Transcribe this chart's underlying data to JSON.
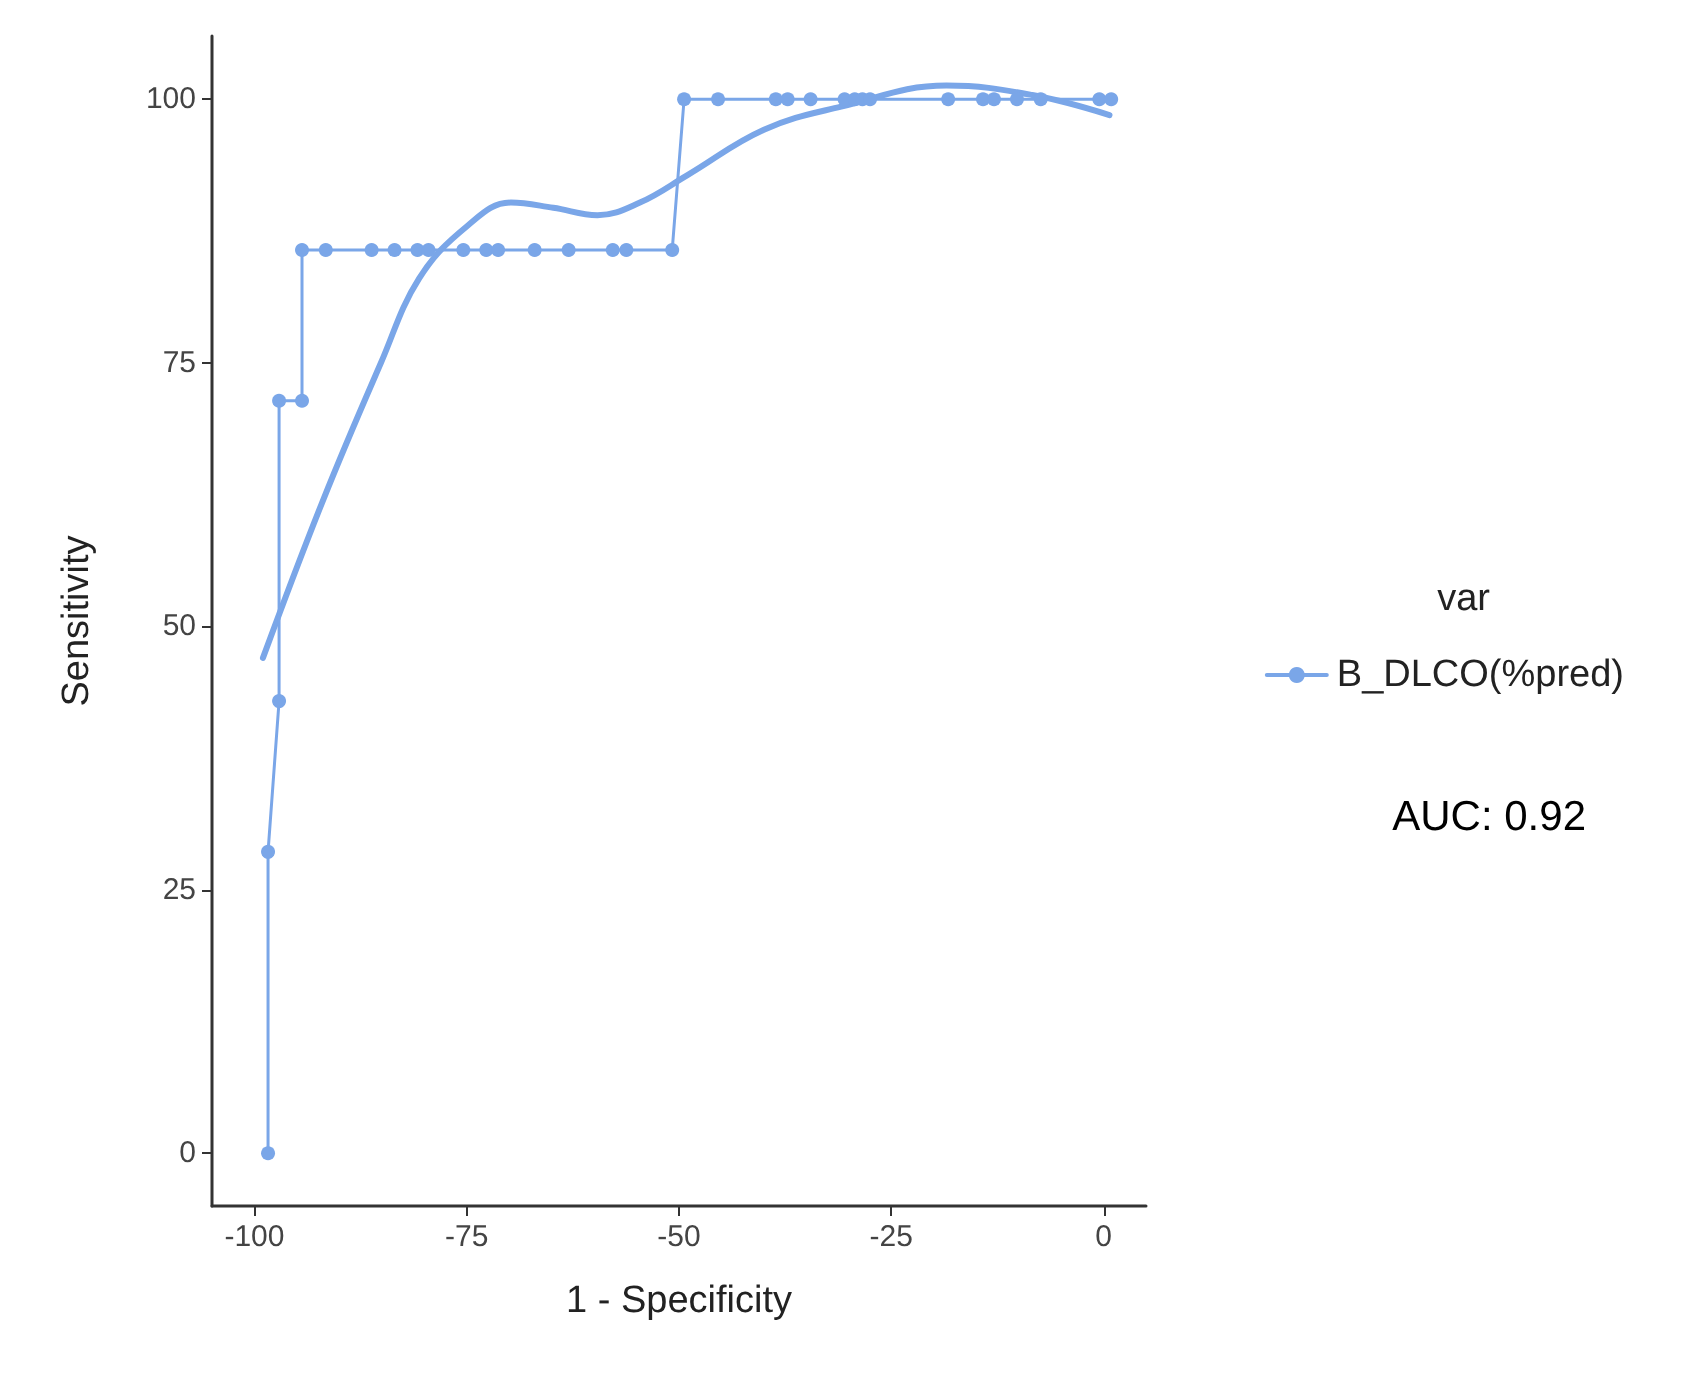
{
  "chart_data": {
    "type": "line",
    "xlabel": "1 - Specificity",
    "ylabel": "Sensitivity",
    "legend_title": "var",
    "legend": "right",
    "grid": false,
    "xlim": [
      -105,
      5
    ],
    "xticks": [
      -100,
      -75,
      -50,
      -25,
      0
    ],
    "ylim": [
      -5,
      106
    ],
    "yticks": [
      0,
      25,
      50,
      75,
      100
    ],
    "annotations": [
      "AUC: 0.92"
    ],
    "series": [
      {
        "name": "B_DLCO(%pred)",
        "color": "#7aa6e8",
        "marker": "circle",
        "line_style": "solid",
        "x": [
          -98.4,
          -98.4,
          -97.1,
          -97.1,
          -94.4,
          -94.4,
          -91.6,
          -86.2,
          -83.5,
          -80.8,
          -79.5,
          -75.4,
          -72.7,
          -71.3,
          -67.0,
          -63.0,
          -57.8,
          -56.2,
          -50.8,
          -49.4,
          -45.4,
          -38.6,
          -37.2,
          -34.5,
          -30.5,
          -29.3,
          -28.4,
          -27.5,
          -18.3,
          -14.2,
          -12.9,
          -10.2,
          -7.4,
          -0.5,
          0.9
        ],
        "values": [
          0,
          28.6,
          42.9,
          71.4,
          71.4,
          85.7,
          85.7,
          85.7,
          85.7,
          85.7,
          85.7,
          85.7,
          85.7,
          85.7,
          85.7,
          85.7,
          85.7,
          85.7,
          85.7,
          100,
          100,
          100,
          100,
          100,
          100,
          100,
          100,
          100,
          100,
          100,
          100,
          100,
          100,
          100,
          100
        ]
      },
      {
        "type": "line",
        "color": "#7aa6e8",
        "marker": "none",
        "x": [
          -99,
          -91.9,
          -85.1,
          -80.6,
          -74.9,
          -69.8,
          -64.8,
          -59.6,
          -54.6,
          -49,
          -40,
          -30.9,
          -18.5,
          -8.4,
          0.7
        ],
        "values": [
          47,
          62,
          75,
          83,
          88,
          90.2,
          89.7,
          89,
          90.2,
          92.8,
          97.1,
          99.3,
          101.3,
          100.4,
          98.5
        ]
      }
    ]
  }
}
